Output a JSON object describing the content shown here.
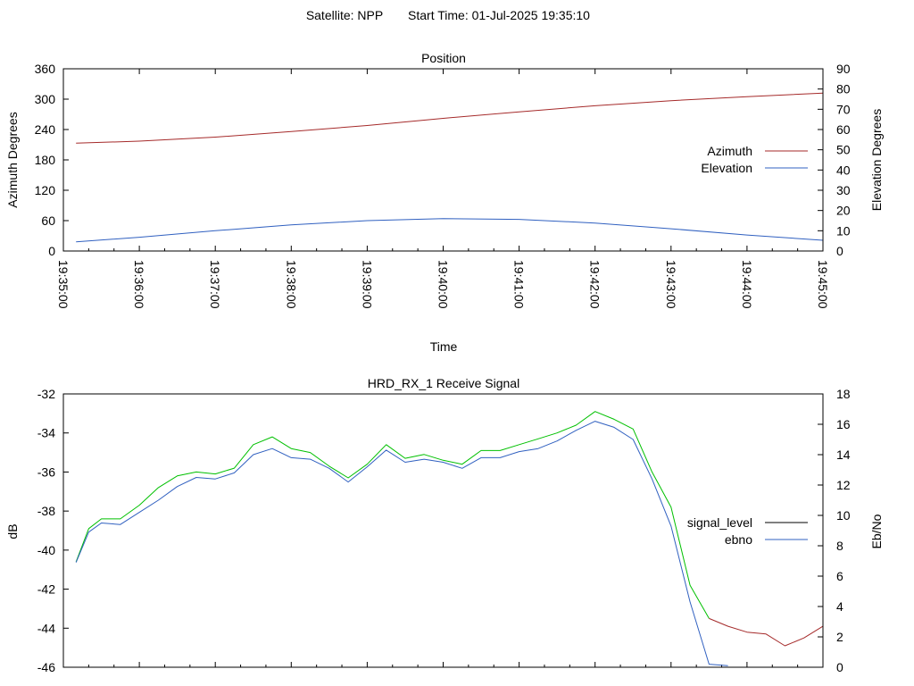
{
  "header": {
    "satellite_label": "Satellite: NPP",
    "start_time_label": "Start Time: 01-Jul-2025 19:35:10"
  },
  "colors": {
    "azimuth": "#a52a2a",
    "elevation": "#3060c0",
    "signal_level": "#000000",
    "ebno": "#3060c0",
    "green_overlay": "#00c000",
    "red_overlay": "#a52a2a"
  },
  "chart_data": [
    {
      "type": "line",
      "title": "Position",
      "xlabel": "Time",
      "ylabel": "Azimuth Degrees",
      "y2label": "Elevation Degrees",
      "xlim": [
        "19:35:00",
        "19:45:00"
      ],
      "ylim": [
        0,
        360
      ],
      "y2lim": [
        0,
        90
      ],
      "x_ticks": [
        "19:35:00",
        "19:36:00",
        "19:37:00",
        "19:38:00",
        "19:39:00",
        "19:40:00",
        "19:41:00",
        "19:42:00",
        "19:43:00",
        "19:44:00",
        "19:45:00"
      ],
      "y_ticks": [
        0,
        60,
        120,
        180,
        240,
        300,
        360
      ],
      "y2_ticks": [
        0,
        10,
        20,
        30,
        40,
        50,
        60,
        70,
        80,
        90
      ],
      "legend": "right",
      "series": [
        {
          "name": "Azimuth",
          "axis": "y",
          "color": "#a52a2a",
          "x": [
            "19:35:10",
            "19:36:00",
            "19:37:00",
            "19:38:00",
            "19:39:00",
            "19:40:00",
            "19:41:00",
            "19:42:00",
            "19:43:00",
            "19:44:00",
            "19:45:00"
          ],
          "values": [
            213,
            217,
            225,
            236,
            248,
            262,
            275,
            287,
            297,
            305,
            312
          ]
        },
        {
          "name": "Elevation",
          "axis": "y2",
          "color": "#3060c0",
          "x": [
            "19:35:10",
            "19:36:00",
            "19:37:00",
            "19:38:00",
            "19:39:00",
            "19:40:00",
            "19:41:00",
            "19:42:00",
            "19:43:00",
            "19:44:00",
            "19:45:00"
          ],
          "values": [
            4.5,
            6.8,
            10.0,
            12.9,
            15.0,
            16.0,
            15.6,
            13.8,
            11.0,
            7.9,
            5.3
          ]
        }
      ]
    },
    {
      "type": "line",
      "title": "HRD_RX_1 Receive Signal",
      "ylabel": "dB",
      "y2label": "Eb/No",
      "xlim": [
        "19:35:00",
        "19:45:00"
      ],
      "ylim": [
        -46,
        -32
      ],
      "y2lim": [
        0,
        18
      ],
      "y_ticks": [
        -46,
        -44,
        -42,
        -40,
        -38,
        -36,
        -34,
        -32
      ],
      "y2_ticks": [
        0,
        2,
        4,
        6,
        8,
        10,
        12,
        14,
        16,
        18
      ],
      "legend": "right",
      "series": [
        {
          "name": "signal_level",
          "axis": "y",
          "color": "#000000",
          "x": [
            "19:35:10",
            "19:35:20",
            "19:35:30",
            "19:35:45",
            "19:36:00",
            "19:36:15",
            "19:36:30",
            "19:36:45",
            "19:37:00",
            "19:37:15",
            "19:37:30",
            "19:37:45",
            "19:38:00",
            "19:38:15",
            "19:38:30",
            "19:38:45",
            "19:39:00",
            "19:39:15",
            "19:39:30",
            "19:39:45",
            "19:40:00",
            "19:40:15",
            "19:40:30",
            "19:40:45",
            "19:41:00",
            "19:41:15",
            "19:41:30",
            "19:41:45",
            "19:42:00",
            "19:42:15",
            "19:42:30",
            "19:42:45",
            "19:43:00",
            "19:43:15",
            "19:43:30",
            "19:43:45",
            "19:44:00",
            "19:44:15",
            "19:44:30",
            "19:44:45",
            "19:45:00"
          ],
          "values": [
            -40.6,
            -38.9,
            -38.4,
            -38.4,
            -37.7,
            -36.8,
            -36.2,
            -36.0,
            -36.1,
            -35.8,
            -34.6,
            -34.2,
            -34.8,
            -35.0,
            -35.7,
            -36.3,
            -35.6,
            -34.6,
            -35.3,
            -35.1,
            -35.4,
            -35.6,
            -34.9,
            -34.9,
            -34.6,
            -34.3,
            -34.0,
            -33.6,
            -32.9,
            -33.3,
            -33.8,
            -36.0,
            -37.8,
            -41.8,
            -43.5,
            -43.9,
            -44.2,
            -44.3,
            -44.9,
            -44.5,
            -43.9
          ]
        },
        {
          "name": "ebno",
          "axis": "y2",
          "color": "#3060c0",
          "x": [
            "19:35:10",
            "19:35:20",
            "19:35:30",
            "19:35:45",
            "19:36:00",
            "19:36:15",
            "19:36:30",
            "19:36:45",
            "19:37:00",
            "19:37:15",
            "19:37:30",
            "19:37:45",
            "19:38:00",
            "19:38:15",
            "19:38:30",
            "19:38:45",
            "19:39:00",
            "19:39:15",
            "19:39:30",
            "19:39:45",
            "19:40:00",
            "19:40:15",
            "19:40:30",
            "19:40:45",
            "19:41:00",
            "19:41:15",
            "19:41:30",
            "19:41:45",
            "19:42:00",
            "19:42:15",
            "19:42:30",
            "19:42:45",
            "19:43:00",
            "19:43:15",
            "19:43:30",
            "19:43:45"
          ],
          "values": [
            6.9,
            8.9,
            9.5,
            9.4,
            10.2,
            11.0,
            11.9,
            12.5,
            12.4,
            12.8,
            14.0,
            14.4,
            13.8,
            13.7,
            13.1,
            12.2,
            13.2,
            14.3,
            13.5,
            13.7,
            13.5,
            13.1,
            13.8,
            13.8,
            14.2,
            14.4,
            14.9,
            15.6,
            16.2,
            15.8,
            15.0,
            12.4,
            9.3,
            4.3,
            0.2,
            0.1
          ]
        }
      ]
    }
  ]
}
